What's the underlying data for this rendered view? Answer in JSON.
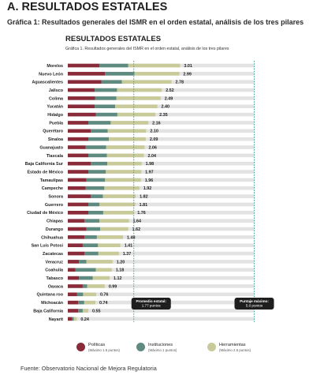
{
  "header": {
    "section_title": "A. RESULTADOS ESTATALES",
    "section_subtitle": "Gráfica 1: Resultados generales del ISMR en el orden estatal, análisis de los tres pilares"
  },
  "colors": {
    "politicas": "#8a2b3a",
    "instituciones": "#5f8a80",
    "herramientas": "#c9ca9a",
    "track": "#e3e3e3",
    "reference_line": "#3aa89a",
    "callout_bg": "#1e1e1e"
  },
  "chart_data": {
    "type": "bar",
    "orientation": "horizontal",
    "stacked": true,
    "title": "RESULTADOS ESTATALES",
    "subtitle": "Gráfica 1. Resultados generales del ISMR en el orden estatal, análisis de los tres pilares",
    "xlim": [
      0,
      5
    ],
    "grid": false,
    "legend_position": "bottom",
    "categories": [
      "Morelos",
      "Nuevo León",
      "Aguascalientes",
      "Jalisco",
      "Colima",
      "Yucatán",
      "Hidalgo",
      "Puebla",
      "Querétaro",
      "Sinaloa",
      "Guanajuato",
      "Tlaxcala",
      "Baja California Sur",
      "Estado de México",
      "Tamaulipas",
      "Campeche",
      "Sonora",
      "Guerrero",
      "Ciudad de México",
      "Chiapas",
      "Durango",
      "Chihuahua",
      "San Luis Potosí",
      "Zacatecas",
      "Veracruz",
      "Coahuila",
      "Tabasco",
      "Oaxaca",
      "Quintana roo",
      "Michoacán",
      "Baja California",
      "Nayarit"
    ],
    "totals": [
      3.01,
      2.99,
      2.78,
      2.52,
      2.49,
      2.4,
      2.35,
      2.16,
      2.1,
      2.09,
      2.06,
      2.04,
      1.98,
      1.97,
      1.96,
      1.92,
      1.82,
      1.81,
      1.76,
      1.64,
      1.62,
      1.48,
      1.41,
      1.37,
      1.2,
      1.18,
      1.12,
      0.99,
      0.76,
      0.74,
      0.55,
      0.24
    ],
    "total_labels": [
      "3.01",
      "2.99",
      "2.78",
      "2.52",
      "2.49",
      "2.40",
      "2.35",
      "2.16",
      "2.10",
      "2.09",
      "2.06",
      "2.04",
      "1.98",
      "1.97",
      "1.96",
      "1.92",
      "1.82",
      "1.81",
      "1.76",
      "1.64",
      "1.62",
      "1.48",
      "1.41",
      "1.37",
      "1.20",
      "1.18",
      "1.12",
      "0.99",
      "0.76",
      "0.74",
      "0.55",
      "0.24"
    ],
    "series": [
      {
        "name": "Políticas",
        "note": "(Máximo 1.5 puntos)",
        "values": [
          0.85,
          1.0,
          0.9,
          0.72,
          0.73,
          0.72,
          0.75,
          0.55,
          0.62,
          0.55,
          0.48,
          0.55,
          0.62,
          0.55,
          0.5,
          0.48,
          0.62,
          0.55,
          0.55,
          0.45,
          0.5,
          0.45,
          0.4,
          0.45,
          0.3,
          0.2,
          0.3,
          0.4,
          0.25,
          0.28,
          0.28,
          0.12
        ]
      },
      {
        "name": "Instituciones",
        "note": "(Máximo 1 puntos)",
        "values": [
          0.77,
          0.79,
          0.55,
          0.6,
          0.57,
          0.55,
          0.58,
          0.6,
          0.45,
          0.55,
          0.55,
          0.5,
          0.44,
          0.47,
          0.5,
          0.5,
          0.32,
          0.3,
          0.4,
          0.4,
          0.37,
          0.33,
          0.41,
          0.37,
          0.2,
          0.55,
          0.37,
          0.12,
          0.16,
          0.16,
          0.12,
          0.04
        ]
      },
      {
        "name": "Herramientas",
        "note": "(Máximo 2.5 puntos)",
        "values": [
          1.39,
          1.2,
          1.33,
          1.2,
          1.19,
          1.13,
          1.02,
          1.01,
          1.03,
          0.99,
          1.03,
          0.99,
          0.92,
          0.95,
          0.96,
          0.94,
          0.88,
          0.96,
          0.81,
          0.79,
          0.75,
          0.7,
          0.6,
          0.55,
          0.7,
          0.43,
          0.45,
          0.47,
          0.35,
          0.3,
          0.15,
          0.08
        ]
      }
    ],
    "reference_lines": [
      {
        "value": 1.77,
        "label_line1": "Promedio estatal:",
        "label_line2": "1.77 puntos"
      },
      {
        "value": 5.0,
        "label_line1": "Puntaje máximo:",
        "label_line2": "5.0 puntos"
      }
    ]
  },
  "footer": {
    "source": "Fuente: Observatorio Nacional de Mejora Regulatoria"
  }
}
